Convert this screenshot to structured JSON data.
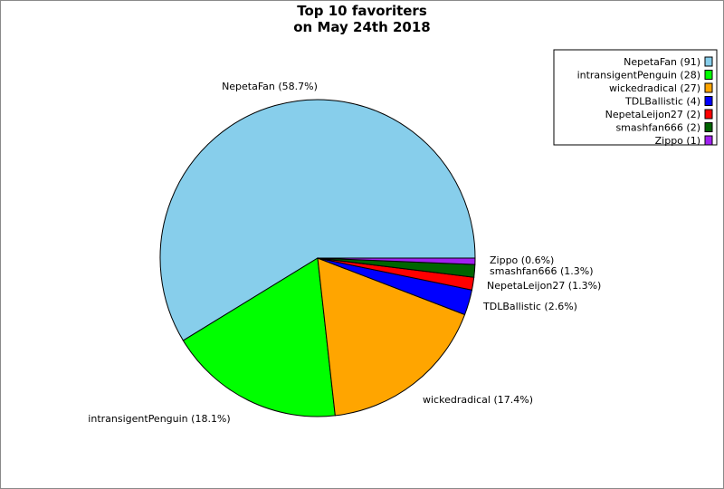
{
  "chart_data": {
    "type": "pie",
    "title": [
      "Top 10 favoriters",
      "on May 24th 2018"
    ],
    "legend_position": "top-right",
    "slices": [
      {
        "name": "NepetaFan",
        "value": 91,
        "color": "#87ceeb",
        "label": "NepetaFan (58.7%)",
        "legend": "NepetaFan (91)"
      },
      {
        "name": "intransigentPenguin",
        "value": 28,
        "color": "#00ff00",
        "label": "intransigentPenguin (18.1%)",
        "legend": "intransigentPenguin (28)"
      },
      {
        "name": "wickedradical",
        "value": 27,
        "color": "#ffa500",
        "label": "wickedradical (17.4%)",
        "legend": "wickedradical (27)"
      },
      {
        "name": "TDLBallistic",
        "value": 4,
        "color": "#0000ff",
        "label": "TDLBallistic (2.6%)",
        "legend": "TDLBallistic (4)"
      },
      {
        "name": "NepetaLeijon27",
        "value": 2,
        "color": "#ff0000",
        "label": "NepetaLeijon27 (1.3%)",
        "legend": "NepetaLeijon27 (2)"
      },
      {
        "name": "smashfan666",
        "value": 2,
        "color": "#006400",
        "label": "smashfan666 (1.3%)",
        "legend": "smashfan666 (2)"
      },
      {
        "name": "Zippo",
        "value": 1,
        "color": "#a020f0",
        "label": "Zippo (0.6%)",
        "legend": "Zippo (1)"
      }
    ]
  }
}
